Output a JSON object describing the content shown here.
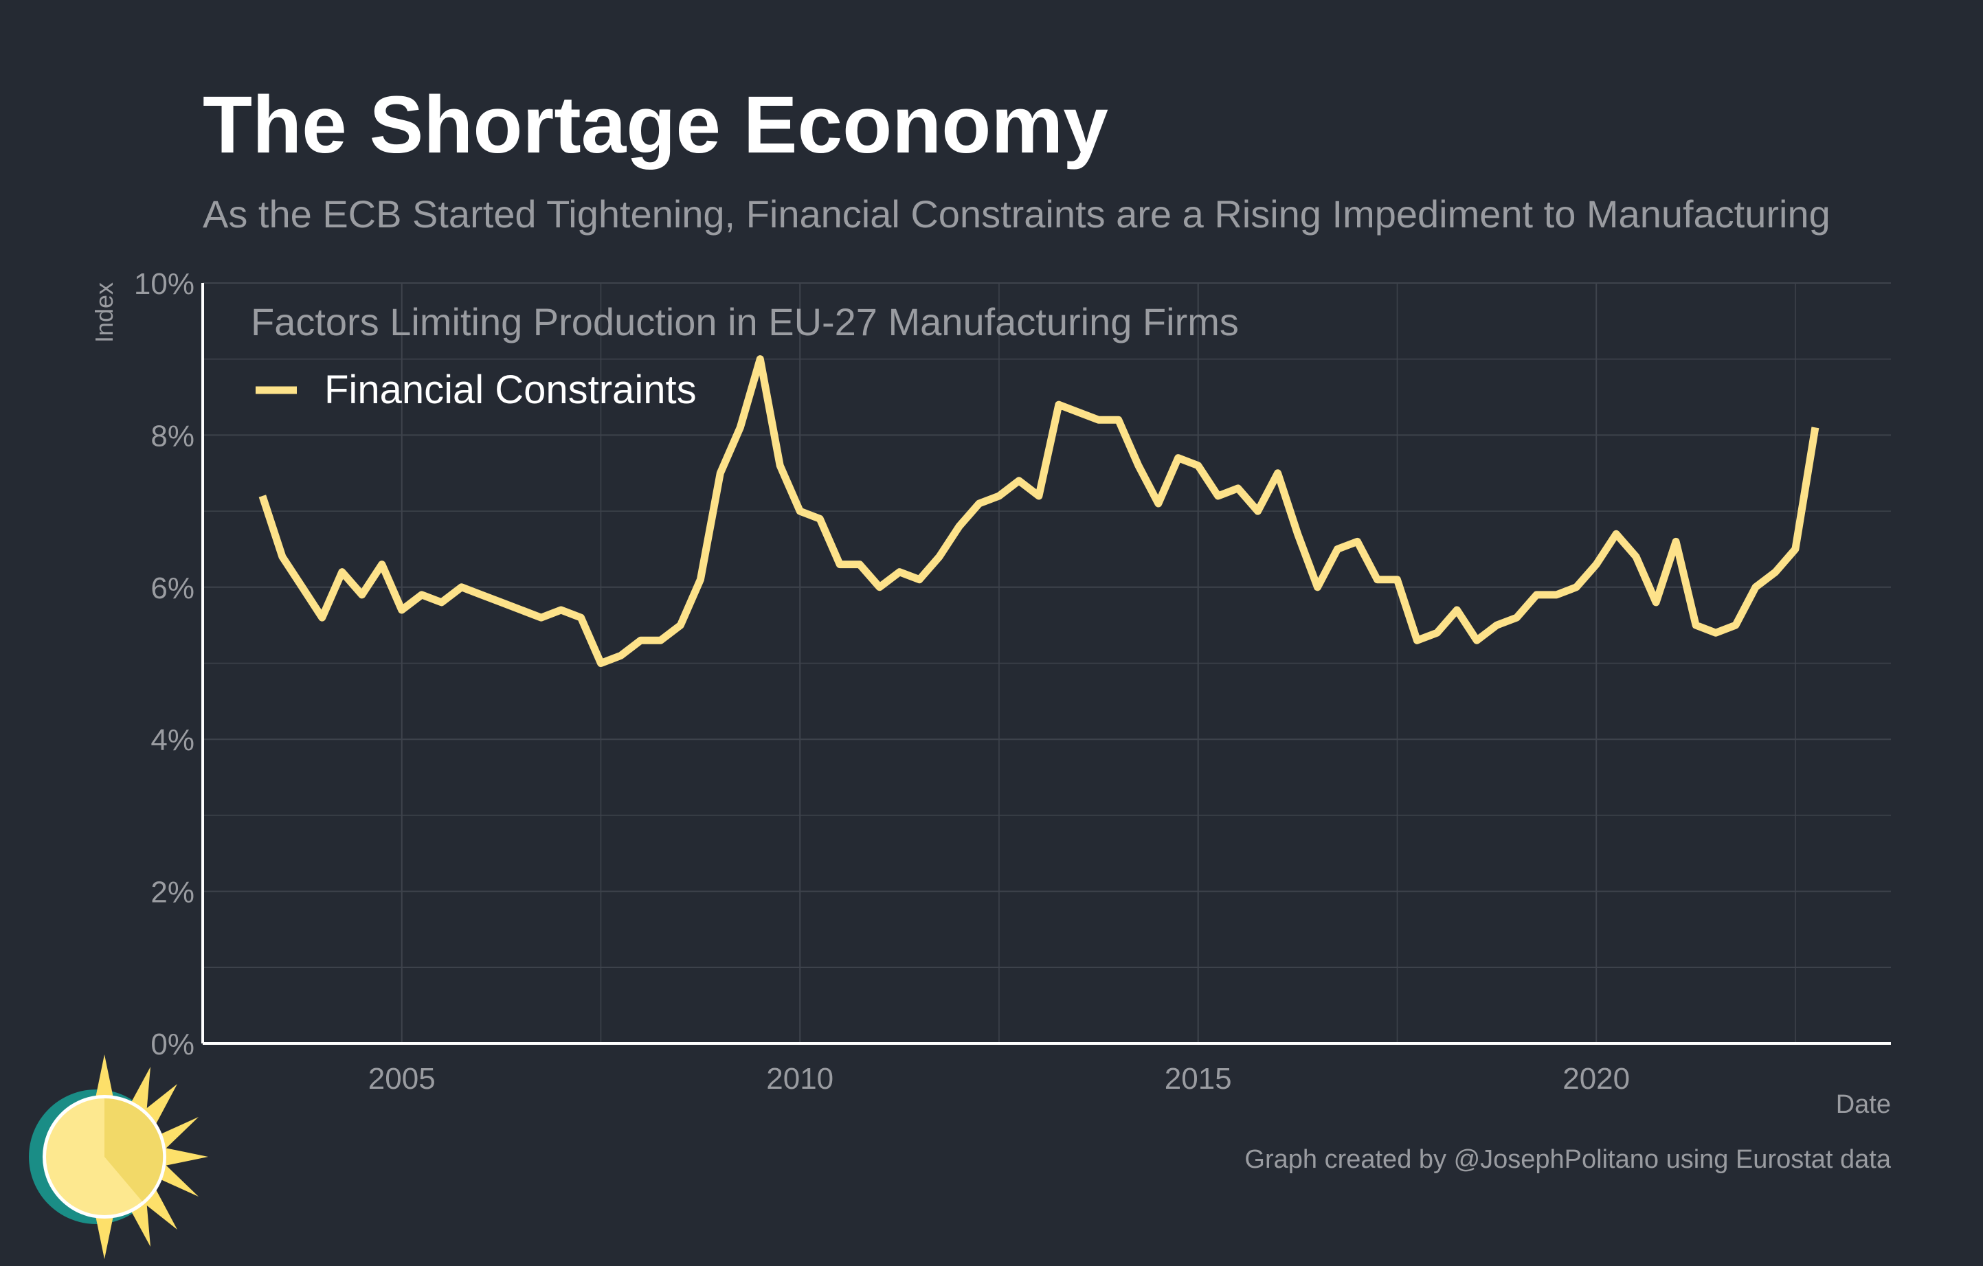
{
  "title": "The Shortage Economy",
  "subtitle": "As the ECB Started Tightening, Financial Constraints are a Rising Impediment to Manufacturing",
  "caption": "Graph created by @JosephPolitano using Eurostat data",
  "logo_icon": "sun-logo-icon",
  "colors": {
    "background": "#252a33",
    "line": "#fde28a",
    "grid": "#3e434c",
    "axis": "#ffffff"
  },
  "chart_data": {
    "type": "line",
    "title": "Factors Limiting Production in EU-27 Manufacturing Firms",
    "xlabel": "Date",
    "ylabel": "Index",
    "xlim": [
      2002.5,
      2023.7
    ],
    "ylim": [
      0,
      10
    ],
    "x_ticks": [
      2005,
      2010,
      2015,
      2020
    ],
    "x_tick_labels": [
      "2005",
      "2010",
      "2015",
      "2020"
    ],
    "y_ticks": [
      0,
      2,
      4,
      6,
      8,
      10
    ],
    "y_tick_labels": [
      "0%",
      "2%",
      "4%",
      "6%",
      "8%",
      "10%"
    ],
    "legend": "top-left",
    "grid": true,
    "series": [
      {
        "name": "Financial Constraints",
        "x": [
          2003.25,
          2003.5,
          2003.75,
          2004.0,
          2004.25,
          2004.5,
          2004.75,
          2005.0,
          2005.25,
          2005.5,
          2005.75,
          2006.0,
          2006.25,
          2006.5,
          2006.75,
          2007.0,
          2007.25,
          2007.5,
          2007.75,
          2008.0,
          2008.25,
          2008.5,
          2008.75,
          2009.0,
          2009.25,
          2009.5,
          2009.75,
          2010.0,
          2010.25,
          2010.5,
          2010.75,
          2011.0,
          2011.25,
          2011.5,
          2011.75,
          2012.0,
          2012.25,
          2012.5,
          2012.75,
          2013.0,
          2013.25,
          2013.5,
          2013.75,
          2014.0,
          2014.25,
          2014.5,
          2014.75,
          2015.0,
          2015.25,
          2015.5,
          2015.75,
          2016.0,
          2016.25,
          2016.5,
          2016.75,
          2017.0,
          2017.25,
          2017.5,
          2017.75,
          2018.0,
          2018.25,
          2018.5,
          2018.75,
          2019.0,
          2019.25,
          2019.5,
          2019.75,
          2020.0,
          2020.25,
          2020.5,
          2020.75,
          2021.0,
          2021.25,
          2021.5,
          2021.75,
          2022.0,
          2022.25,
          2022.5,
          2022.75
        ],
        "values": [
          7.2,
          6.4,
          6.0,
          5.6,
          6.2,
          5.9,
          6.3,
          5.7,
          5.9,
          5.8,
          6.0,
          5.9,
          5.8,
          5.7,
          5.6,
          5.7,
          5.6,
          5.0,
          5.1,
          5.3,
          5.3,
          5.5,
          6.1,
          7.5,
          8.1,
          9.0,
          7.6,
          7.0,
          6.9,
          6.3,
          6.3,
          6.0,
          6.2,
          6.1,
          6.4,
          6.8,
          7.1,
          7.2,
          7.4,
          7.2,
          8.4,
          8.3,
          8.2,
          8.2,
          7.6,
          7.1,
          7.7,
          7.6,
          7.2,
          7.3,
          7.0,
          7.5,
          6.7,
          6.0,
          6.5,
          6.6,
          6.1,
          6.1,
          5.3,
          5.4,
          5.7,
          5.3,
          5.5,
          5.6,
          5.9,
          5.9,
          6.0,
          6.3,
          6.7,
          6.4,
          5.8,
          6.6,
          5.5,
          5.4,
          5.5,
          6.0,
          6.2,
          6.5,
          8.1
        ]
      }
    ]
  }
}
